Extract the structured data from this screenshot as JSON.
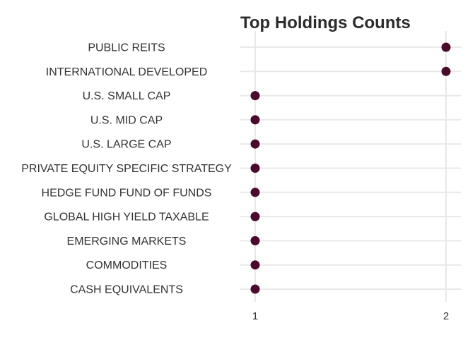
{
  "chart_data": {
    "type": "scatter",
    "title": "Top Holdings Counts",
    "xlabel": "",
    "ylabel": "",
    "x_ticks": [
      1,
      2
    ],
    "xlim": [
      1,
      2
    ],
    "grid": true,
    "point_color": "#4a0a2c",
    "categories": [
      "PUBLIC REITS",
      "INTERNATIONAL DEVELOPED",
      "U.S. SMALL CAP",
      "U.S. MID CAP",
      "U.S. LARGE CAP",
      "PRIVATE EQUITY SPECIFIC STRATEGY",
      "HEDGE FUND FUND OF FUNDS",
      "GLOBAL HIGH YIELD TAXABLE",
      "EMERGING MARKETS",
      "COMMODITIES",
      "CASH EQUIVALENTS"
    ],
    "values": [
      2,
      2,
      1,
      1,
      1,
      1,
      1,
      1,
      1,
      1,
      1
    ]
  }
}
